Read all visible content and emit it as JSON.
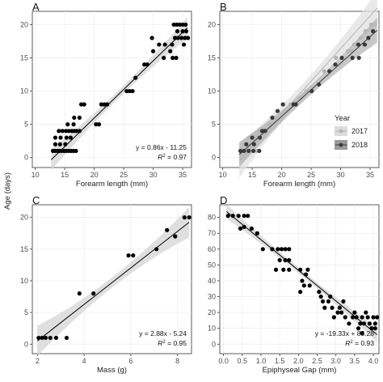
{
  "y_axis_label": "Age (days)",
  "chart_data": [
    {
      "panel": "A",
      "type": "scatter",
      "xlabel": "Forearm length (mm)",
      "xlim": [
        9.5,
        36.5
      ],
      "ylim": [
        -1.5,
        22
      ],
      "xticks": [
        10,
        15,
        20,
        25,
        30,
        35
      ],
      "yticks": [
        0,
        5,
        10,
        15,
        20
      ],
      "fit": {
        "slope": 0.86,
        "intercept": -11.25,
        "x_range": [
          12.7,
          35.8
        ]
      },
      "band": {
        "half_width_ends": 1.6,
        "half_width_mid": 0.6
      },
      "equation": "y = 0.86x - 11.25",
      "r2_label": "= 0.97",
      "series": [
        {
          "name": "",
          "color": "#000000",
          "points": [
            [
              13,
              1
            ],
            [
              13.4,
              1
            ],
            [
              13.8,
              1
            ],
            [
              14.1,
              1
            ],
            [
              14.5,
              1
            ],
            [
              14.9,
              1
            ],
            [
              15.3,
              1
            ],
            [
              15.7,
              1
            ],
            [
              16.1,
              1
            ],
            [
              16.5,
              1
            ],
            [
              16.9,
              1
            ],
            [
              13.4,
              2
            ],
            [
              14.2,
              2
            ],
            [
              15.1,
              2
            ],
            [
              13.4,
              3
            ],
            [
              14.3,
              3
            ],
            [
              15.3,
              3
            ],
            [
              16,
              3
            ],
            [
              14,
              4
            ],
            [
              14.6,
              4
            ],
            [
              15.2,
              4
            ],
            [
              15.7,
              4
            ],
            [
              16.2,
              4
            ],
            [
              16.6,
              4
            ],
            [
              17,
              4
            ],
            [
              17.5,
              4
            ],
            [
              15.5,
              5
            ],
            [
              16.5,
              5
            ],
            [
              20.3,
              5
            ],
            [
              20.8,
              5
            ],
            [
              16.6,
              6
            ],
            [
              17.5,
              6
            ],
            [
              17.8,
              8
            ],
            [
              18.3,
              8
            ],
            [
              21.2,
              8
            ],
            [
              21.7,
              8
            ],
            [
              22.2,
              8
            ],
            [
              25.5,
              10
            ],
            [
              26,
              10
            ],
            [
              26.5,
              10
            ],
            [
              27,
              12
            ],
            [
              28.5,
              14
            ],
            [
              29,
              14
            ],
            [
              31.8,
              15
            ],
            [
              33.3,
              15
            ],
            [
              33.9,
              15
            ],
            [
              30,
              16
            ],
            [
              32.9,
              16
            ],
            [
              31,
              17
            ],
            [
              32,
              17
            ],
            [
              33.2,
              17
            ],
            [
              35.2,
              17
            ],
            [
              29.8,
              18
            ],
            [
              33.7,
              18
            ],
            [
              34.2,
              18
            ],
            [
              34.8,
              18
            ],
            [
              35.4,
              18
            ],
            [
              35.9,
              18
            ],
            [
              34.1,
              19
            ],
            [
              35,
              19
            ],
            [
              35.6,
              19
            ],
            [
              33.5,
              20
            ],
            [
              34,
              20
            ],
            [
              34.5,
              20
            ],
            [
              35,
              20
            ],
            [
              35.5,
              20
            ]
          ]
        }
      ]
    },
    {
      "panel": "B",
      "type": "scatter",
      "xlabel": "Forearm length (mm)",
      "xlim": [
        9.5,
        36.5
      ],
      "ylim": [
        -1.5,
        22
      ],
      "xticks": [
        10,
        15,
        20,
        25,
        30,
        35
      ],
      "yticks": [
        0,
        5,
        10,
        15,
        20
      ],
      "legend": {
        "title": "Year",
        "placement": "right"
      },
      "series": [
        {
          "name": "2017",
          "color": "#b5b5b5",
          "fit": {
            "slope": 0.98,
            "intercept": -13.0,
            "x_range": [
              12.8,
              36.2
            ]
          },
          "band": {
            "half_width_ends": 2.6,
            "half_width_mid": 1.0
          },
          "points": [
            [
              13.4,
              1
            ],
            [
              14.2,
              1
            ],
            [
              15,
              1
            ],
            [
              15.8,
              1
            ],
            [
              13.9,
              2
            ],
            [
              14.8,
              2
            ],
            [
              14.5,
              3
            ],
            [
              15.9,
              3
            ],
            [
              16.2,
              4
            ],
            [
              17.1,
              4
            ],
            [
              18,
              5
            ],
            [
              18.7,
              6
            ],
            [
              20.3,
              8
            ],
            [
              21.5,
              8
            ],
            [
              23.2,
              9
            ],
            [
              24.2,
              10
            ],
            [
              27.2,
              13
            ],
            [
              29.2,
              15
            ],
            [
              31.2,
              16
            ],
            [
              31.8,
              16
            ],
            [
              32.3,
              17
            ],
            [
              33.4,
              18
            ],
            [
              34.2,
              19
            ],
            [
              35.2,
              20
            ]
          ]
        },
        {
          "name": "2018",
          "color": "#3a3a3a",
          "fit": {
            "slope": 0.8,
            "intercept": -9.8,
            "x_range": [
              12.8,
              36.2
            ]
          },
          "band": {
            "half_width_ends": 1.9,
            "half_width_mid": 0.7
          },
          "points": [
            [
              13,
              1
            ],
            [
              13.6,
              1
            ],
            [
              14.4,
              1
            ],
            [
              15.2,
              1
            ],
            [
              16.2,
              1
            ],
            [
              14,
              2
            ],
            [
              15.3,
              2
            ],
            [
              15,
              3
            ],
            [
              16.3,
              3
            ],
            [
              17.2,
              4
            ],
            [
              16.7,
              4
            ],
            [
              18.4,
              6
            ],
            [
              19.3,
              7
            ],
            [
              20.2,
              8
            ],
            [
              22,
              8
            ],
            [
              22.4,
              8
            ],
            [
              25.1,
              10
            ],
            [
              26.3,
              11
            ],
            [
              28.1,
              13
            ],
            [
              29.1,
              14
            ],
            [
              30.2,
              15
            ],
            [
              32,
              15
            ],
            [
              33.1,
              15
            ],
            [
              33,
              17
            ],
            [
              34.1,
              17
            ],
            [
              34.7,
              18
            ],
            [
              35.5,
              19
            ]
          ]
        }
      ]
    },
    {
      "panel": "C",
      "type": "scatter",
      "xlabel": "Mass (g)",
      "xlim": [
        1.78,
        8.6
      ],
      "ylim": [
        -1.5,
        22
      ],
      "xticks": [
        2,
        4,
        6,
        8
      ],
      "xtick_labels": [
        "2",
        "4",
        "6",
        "8"
      ],
      "yticks": [
        0,
        5,
        10,
        15,
        20
      ],
      "fit": {
        "slope": 2.88,
        "intercept": -5.24,
        "x_range": [
          2.0,
          8.5
        ]
      },
      "band": {
        "half_width_ends": 2.4,
        "half_width_mid": 0.8
      },
      "equation": "y = 2.88x - 5.24",
      "r2_label": "= 0.95",
      "series": [
        {
          "name": "",
          "color": "#000000",
          "points": [
            [
              2.05,
              1
            ],
            [
              2.2,
              1
            ],
            [
              2.35,
              1
            ],
            [
              2.55,
              1
            ],
            [
              2.8,
              1
            ],
            [
              3.25,
              1
            ],
            [
              3.8,
              8
            ],
            [
              4.4,
              8
            ],
            [
              5.9,
              14
            ],
            [
              6.1,
              14
            ],
            [
              7.1,
              15
            ],
            [
              7.55,
              18
            ],
            [
              7.9,
              17
            ],
            [
              8.3,
              20
            ],
            [
              8.5,
              20
            ]
          ]
        }
      ]
    },
    {
      "panel": "D",
      "type": "scatter",
      "xlabel": "Epiphyseal Gap (mm)",
      "xlim": [
        -0.1,
        4.15
      ],
      "ylim": [
        -6,
        88
      ],
      "xticks": [
        0,
        0.5,
        1,
        1.5,
        2,
        2.5,
        3,
        3.5,
        4
      ],
      "xtick_labels": [
        "0.0",
        "0.5",
        "1.0",
        "1.5",
        "2.0",
        "2.5",
        "3.0",
        "3.5",
        "4.0"
      ],
      "yticks": [
        0,
        10,
        20,
        30,
        40,
        50,
        60,
        70,
        80
      ],
      "fit": {
        "slope": -19.33,
        "intercept": 85.28,
        "x_range": [
          0.08,
          4.1
        ]
      },
      "band": {
        "half_width_ends": 4.5,
        "half_width_mid": 1.8
      },
      "equation": "y = -19.33x + 85.28",
      "r2_label": "= 0.93",
      "series": [
        {
          "name": "",
          "color": "#000000",
          "points": [
            [
              0.12,
              81
            ],
            [
              0.25,
              81
            ],
            [
              0.4,
              81
            ],
            [
              0.55,
              81
            ],
            [
              0.65,
              81
            ],
            [
              0.45,
              73
            ],
            [
              0.55,
              74
            ],
            [
              0.75,
              73
            ],
            [
              0.9,
              70
            ],
            [
              1.05,
              60
            ],
            [
              1.3,
              60
            ],
            [
              1.45,
              60
            ],
            [
              1.55,
              60
            ],
            [
              1.65,
              60
            ],
            [
              1.75,
              60
            ],
            [
              1.5,
              53
            ],
            [
              1.65,
              53
            ],
            [
              1.75,
              53
            ],
            [
              1.4,
              47
            ],
            [
              1.6,
              47
            ],
            [
              1.75,
              47
            ],
            [
              2.05,
              47
            ],
            [
              2.25,
              47
            ],
            [
              2.2,
              44
            ],
            [
              2.1,
              40
            ],
            [
              2.15,
              37
            ],
            [
              2.3,
              37
            ],
            [
              2.05,
              33
            ],
            [
              2.55,
              33
            ],
            [
              2.6,
              30
            ],
            [
              2.65,
              27
            ],
            [
              2.7,
              23
            ],
            [
              2.8,
              27
            ],
            [
              2.85,
              30
            ],
            [
              2.9,
              23
            ],
            [
              2.95,
              17
            ],
            [
              3.05,
              20
            ],
            [
              3.1,
              23
            ],
            [
              3.15,
              20
            ],
            [
              3.2,
              27
            ],
            [
              3.25,
              17
            ],
            [
              3.35,
              13
            ],
            [
              3.45,
              17
            ],
            [
              3.5,
              20
            ],
            [
              3.55,
              17
            ],
            [
              3.65,
              13
            ],
            [
              3.7,
              17
            ],
            [
              3.75,
              13
            ],
            [
              3.8,
              20
            ],
            [
              3.85,
              17
            ],
            [
              3.9,
              13
            ],
            [
              3.95,
              10
            ],
            [
              4.0,
              17
            ],
            [
              4.05,
              13
            ],
            [
              4.1,
              17
            ],
            [
              3.6,
              10
            ],
            [
              3.7,
              7
            ],
            [
              4.05,
              10
            ]
          ]
        }
      ]
    }
  ]
}
